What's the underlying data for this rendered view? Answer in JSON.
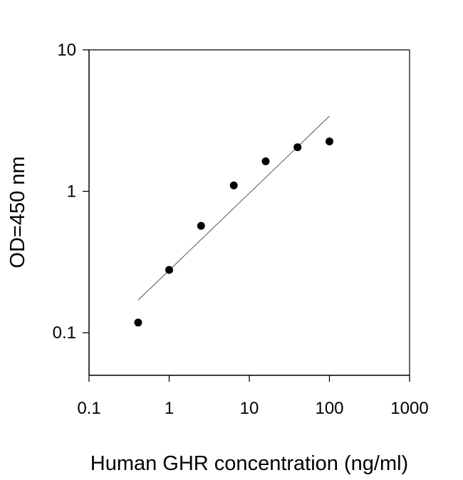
{
  "chart_data": {
    "type": "scatter",
    "title": "",
    "xlabel": "Human GHR concentration (ng/ml)",
    "ylabel": "OD=450 nm",
    "x_scale": "log",
    "y_scale": "log",
    "xlim": [
      0.1,
      1000
    ],
    "ylim": [
      0.05,
      10
    ],
    "x_ticks": [
      0.1,
      1,
      10,
      100,
      1000
    ],
    "x_tick_labels": [
      "0.1",
      "1",
      "10",
      "100",
      "1000"
    ],
    "y_ticks": [
      0.1,
      1,
      10
    ],
    "y_tick_labels": [
      "0.1",
      "1",
      "10"
    ],
    "grid": false,
    "series": [
      {
        "x": [
          0.41,
          1.0,
          2.5,
          6.4,
          16,
          40,
          100
        ],
        "y": [
          0.118,
          0.278,
          0.57,
          1.1,
          1.63,
          2.05,
          2.25
        ],
        "color": "#000000"
      }
    ],
    "fit_line": {
      "x": [
        0.41,
        100
      ],
      "y": [
        0.17,
        3.4
      ],
      "color": "#666666"
    }
  }
}
